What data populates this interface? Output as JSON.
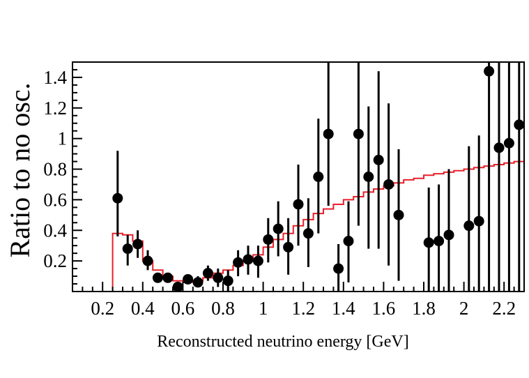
{
  "chart_data": {
    "type": "scatter",
    "title": "",
    "xlabel": "Reconstructed neutrino energy [GeV]",
    "ylabel": "Ratio to no osc.",
    "xlim": [
      0.05,
      2.3
    ],
    "ylim": [
      0.0,
      1.5
    ],
    "x_ticks": [
      0.2,
      0.4,
      0.6,
      0.8,
      1,
      1.2,
      1.4,
      1.6,
      1.8,
      2,
      2.2
    ],
    "x_tick_labels": [
      "0.2",
      "0.4",
      "0.6",
      "0.8",
      "1",
      "1.2",
      "1.4",
      "1.6",
      "1.8",
      "2",
      "2.2"
    ],
    "y_ticks": [
      0.2,
      0.4,
      0.6,
      0.8,
      1.0,
      1.2,
      1.4
    ],
    "y_tick_labels": [
      "0.2",
      "0.4",
      "0.6",
      "0.8",
      "1",
      "1.2",
      "1.4"
    ],
    "grid": false,
    "colors": {
      "data": "#000000",
      "model": "#e8202a",
      "axis": "#000000"
    },
    "series": [
      {
        "type": "points-with-error-bars",
        "points": [
          {
            "x": 0.275,
            "y": 0.61,
            "lo": 0.36,
            "hi": 0.92
          },
          {
            "x": 0.325,
            "y": 0.28,
            "lo": 0.17,
            "hi": 0.37
          },
          {
            "x": 0.375,
            "y": 0.31,
            "lo": 0.22,
            "hi": 0.4
          },
          {
            "x": 0.425,
            "y": 0.2,
            "lo": 0.14,
            "hi": 0.27
          },
          {
            "x": 0.475,
            "y": 0.09,
            "lo": 0.06,
            "hi": 0.12
          },
          {
            "x": 0.525,
            "y": 0.09,
            "lo": 0.06,
            "hi": 0.12
          },
          {
            "x": 0.575,
            "y": 0.03,
            "lo": 0.01,
            "hi": 0.06
          },
          {
            "x": 0.625,
            "y": 0.08,
            "lo": 0.05,
            "hi": 0.11
          },
          {
            "x": 0.675,
            "y": 0.06,
            "lo": 0.03,
            "hi": 0.1
          },
          {
            "x": 0.725,
            "y": 0.12,
            "lo": 0.07,
            "hi": 0.17
          },
          {
            "x": 0.775,
            "y": 0.09,
            "lo": 0.03,
            "hi": 0.15
          },
          {
            "x": 0.825,
            "y": 0.07,
            "lo": 0.0,
            "hi": 0.14
          },
          {
            "x": 0.875,
            "y": 0.19,
            "lo": 0.1,
            "hi": 0.27
          },
          {
            "x": 0.925,
            "y": 0.21,
            "lo": 0.11,
            "hi": 0.3
          },
          {
            "x": 0.975,
            "y": 0.2,
            "lo": 0.09,
            "hi": 0.3
          },
          {
            "x": 1.025,
            "y": 0.34,
            "lo": 0.19,
            "hi": 0.48
          },
          {
            "x": 1.075,
            "y": 0.41,
            "lo": 0.23,
            "hi": 0.59
          },
          {
            "x": 1.125,
            "y": 0.29,
            "lo": 0.11,
            "hi": 0.48
          },
          {
            "x": 1.175,
            "y": 0.57,
            "lo": 0.3,
            "hi": 0.83
          },
          {
            "x": 1.225,
            "y": 0.38,
            "lo": 0.16,
            "hi": 0.61
          },
          {
            "x": 1.275,
            "y": 0.75,
            "lo": 0.38,
            "hi": 1.13
          },
          {
            "x": 1.325,
            "y": 1.03,
            "lo": 0.56,
            "hi": 1.5
          },
          {
            "x": 1.375,
            "y": 0.15,
            "lo": 0.0,
            "hi": 0.31
          },
          {
            "x": 1.425,
            "y": 0.33,
            "lo": 0.06,
            "hi": 0.59
          },
          {
            "x": 1.475,
            "y": 1.03,
            "lo": 0.43,
            "hi": 1.5
          },
          {
            "x": 1.525,
            "y": 0.75,
            "lo": 0.28,
            "hi": 1.21
          },
          {
            "x": 1.575,
            "y": 0.86,
            "lo": 0.28,
            "hi": 1.44
          },
          {
            "x": 1.625,
            "y": 0.7,
            "lo": 0.17,
            "hi": 1.23
          },
          {
            "x": 1.675,
            "y": 0.5,
            "lo": 0.07,
            "hi": 0.93
          },
          {
            "x": 1.825,
            "y": 0.32,
            "lo": 0.0,
            "hi": 0.68
          },
          {
            "x": 1.875,
            "y": 0.33,
            "lo": 0.0,
            "hi": 0.7
          },
          {
            "x": 1.925,
            "y": 0.37,
            "lo": 0.0,
            "hi": 0.8
          },
          {
            "x": 2.025,
            "y": 0.43,
            "lo": 0.0,
            "hi": 0.95
          },
          {
            "x": 2.075,
            "y": 0.46,
            "lo": 0.0,
            "hi": 1.02
          },
          {
            "x": 2.125,
            "y": 1.44,
            "lo": 0.0,
            "hi": 1.5
          },
          {
            "x": 2.175,
            "y": 0.94,
            "lo": 0.0,
            "hi": 1.5
          },
          {
            "x": 2.225,
            "y": 0.97,
            "lo": 0.0,
            "hi": 1.5
          },
          {
            "x": 2.275,
            "y": 1.09,
            "lo": 0.0,
            "hi": 1.5
          }
        ]
      },
      {
        "type": "step",
        "bin_edges": [
          0.25,
          0.3,
          0.35,
          0.4,
          0.45,
          0.5,
          0.55,
          0.6,
          0.65,
          0.7,
          0.75,
          0.8,
          0.85,
          0.9,
          0.95,
          1.0,
          1.05,
          1.1,
          1.15,
          1.2,
          1.25,
          1.3,
          1.35,
          1.4,
          1.45,
          1.5,
          1.55,
          1.6,
          1.65,
          1.7,
          1.75,
          1.8,
          1.85,
          1.9,
          1.95,
          2.0,
          2.05,
          2.1,
          2.15,
          2.2,
          2.25,
          2.3
        ],
        "values": [
          0.38,
          0.37,
          0.33,
          0.2,
          0.14,
          0.1,
          0.07,
          0.06,
          0.07,
          0.09,
          0.12,
          0.14,
          0.17,
          0.2,
          0.24,
          0.29,
          0.34,
          0.38,
          0.43,
          0.47,
          0.51,
          0.54,
          0.57,
          0.6,
          0.62,
          0.65,
          0.67,
          0.69,
          0.71,
          0.73,
          0.74,
          0.76,
          0.77,
          0.78,
          0.79,
          0.8,
          0.81,
          0.82,
          0.83,
          0.84,
          0.85
        ]
      }
    ]
  }
}
